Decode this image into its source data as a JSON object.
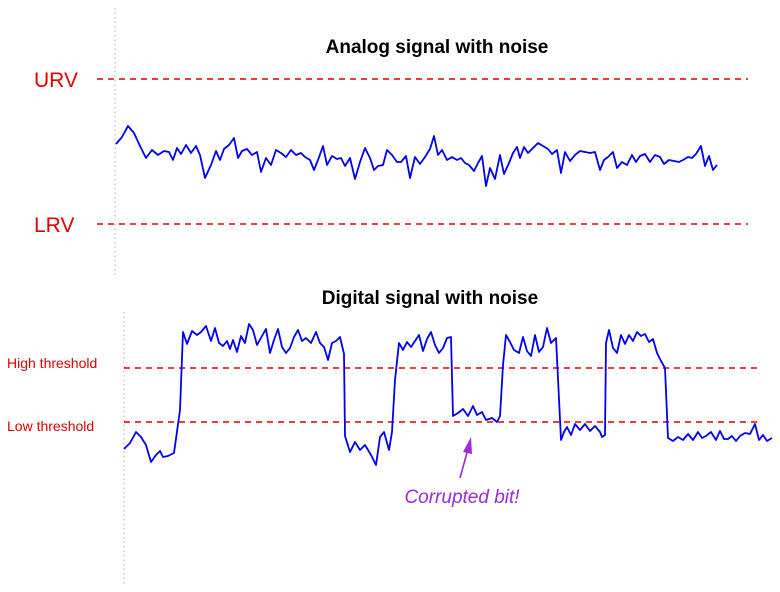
{
  "colors": {
    "signal": "#0000ee",
    "reference": "#e00000",
    "annotation": "#9a2bd6",
    "axis": "#bbbbbb",
    "text": "#000000"
  },
  "analog": {
    "title": "Analog signal with noise",
    "urv_label": "URV",
    "lrv_label": "LRV"
  },
  "digital": {
    "title": "Digital signal with noise",
    "high_threshold_label": "High threshold",
    "low_threshold_label": "Low threshold",
    "annotation": "Corrupted bit!"
  }
}
